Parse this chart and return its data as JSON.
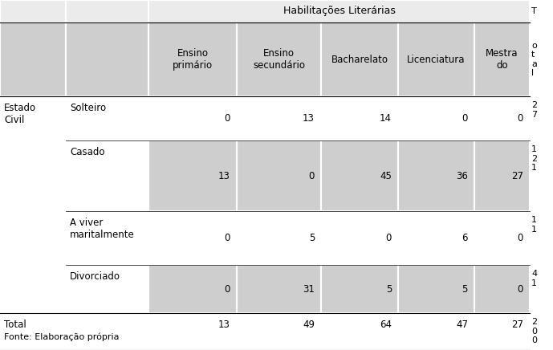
{
  "title": "Habilitações Literárias",
  "col_headers": [
    "Ensino\nprimário",
    "Ensino\nsecundário",
    "Bacharelato",
    "Licenciatura",
    "Mestra\ndo"
  ],
  "total_col_header": "T\no\nt\na\nl",
  "row_group_label": "Estado\nCivil",
  "row_labels": [
    "Solteiro",
    "Casado",
    "A viver\nmaritalmente",
    "Divorciado"
  ],
  "data": [
    [
      0,
      13,
      14,
      0,
      0,
      "2\n7"
    ],
    [
      13,
      0,
      45,
      36,
      27,
      "1\n2\n1"
    ],
    [
      0,
      5,
      0,
      6,
      0,
      "1\n1"
    ],
    [
      0,
      31,
      5,
      5,
      0,
      "4\n1"
    ]
  ],
  "total_row_label": "Total",
  "total_values": [
    13,
    49,
    64,
    47,
    27,
    "2\n0\n0"
  ],
  "footnote": "Fonte: Elaboração própria",
  "bg_gray": "#cecece",
  "bg_light_gray": "#ebebeb",
  "bg_white": "#ffffff",
  "text_color": "#000000",
  "row_bg": [
    "#ffffff",
    "#cecece",
    "#ffffff",
    "#cecece"
  ]
}
